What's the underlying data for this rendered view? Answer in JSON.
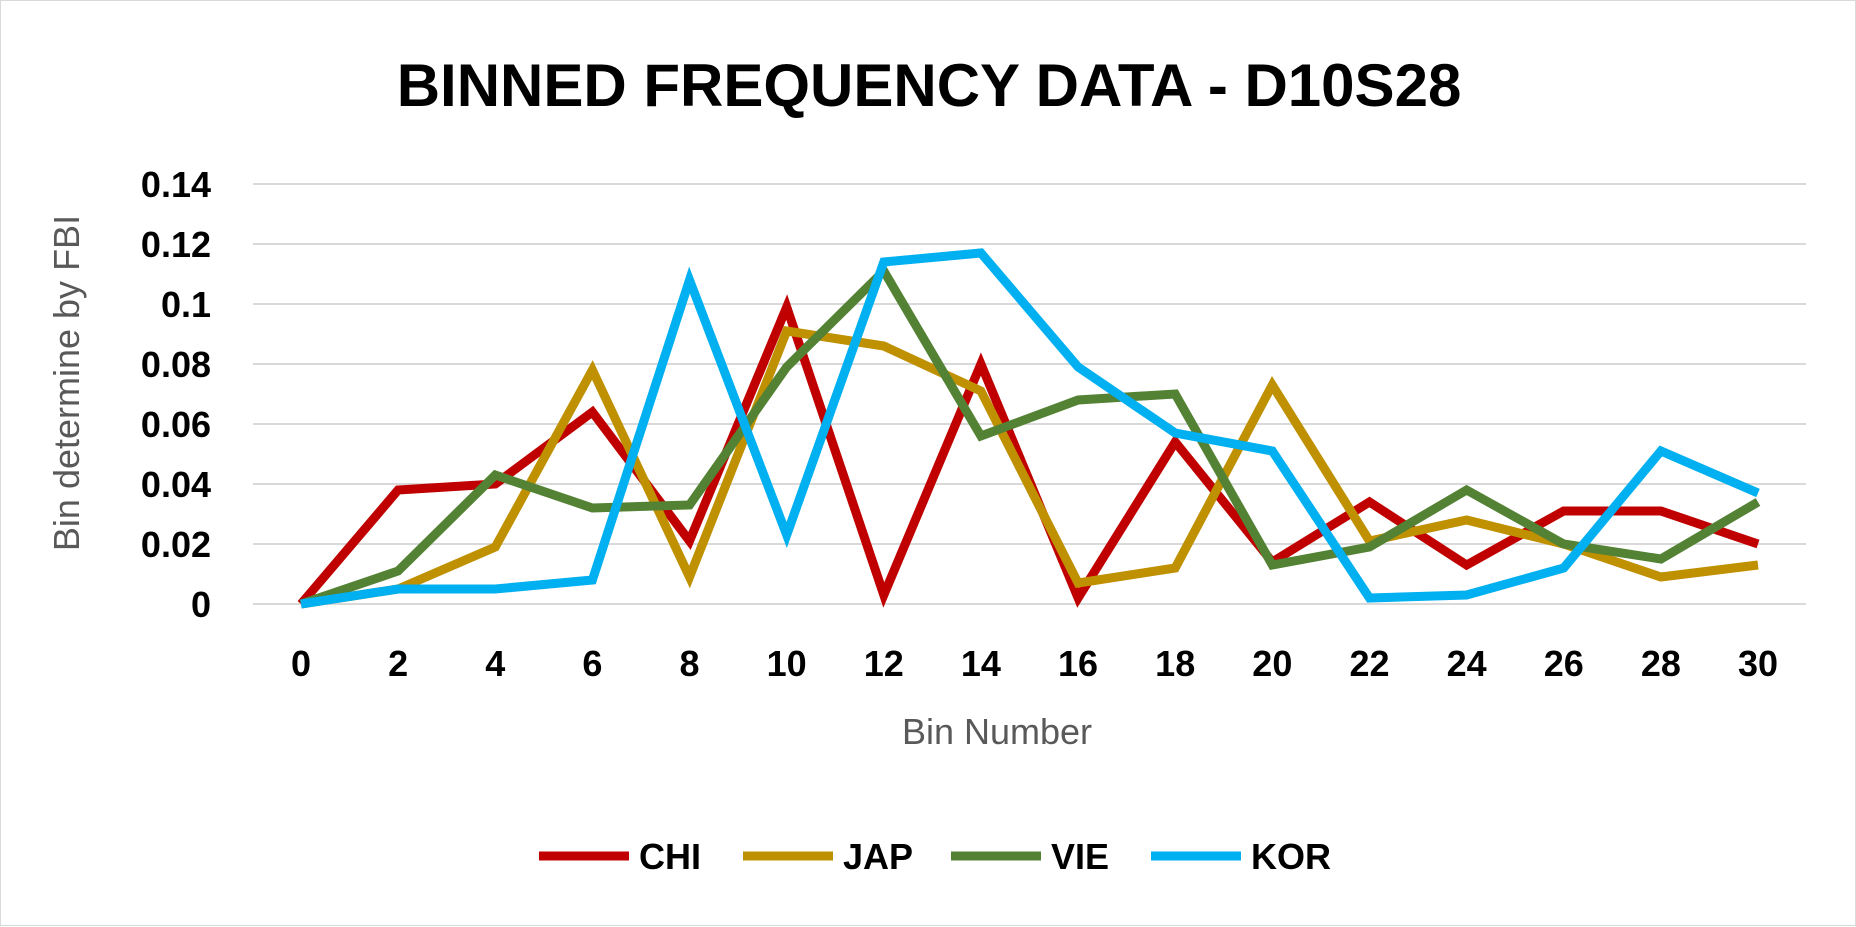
{
  "chart_data": {
    "type": "line",
    "title": "BINNED FREQUENCY DATA - D10S28",
    "xlabel": "Bin Number",
    "ylabel": "Bin determine by FBI",
    "x": [
      0,
      2,
      4,
      6,
      8,
      10,
      12,
      14,
      16,
      18,
      20,
      22,
      24,
      26,
      28,
      30
    ],
    "x_tick_labels": [
      "0",
      "2",
      "4",
      "6",
      "8",
      "10",
      "12",
      "14",
      "16",
      "18",
      "20",
      "22",
      "24",
      "26",
      "28",
      "30"
    ],
    "ylim": [
      0,
      0.14
    ],
    "y_ticks": [
      0,
      0.02,
      0.04,
      0.06,
      0.08,
      0.1,
      0.12,
      0.14
    ],
    "y_tick_labels": [
      "0",
      "0.02",
      "0.04",
      "0.06",
      "0.08",
      "0.1",
      "0.12",
      "0.14"
    ],
    "grid": true,
    "legend_position": "bottom",
    "series": [
      {
        "name": "CHI",
        "color": "#c00000",
        "values": [
          0,
          0.038,
          0.04,
          0.064,
          0.021,
          0.099,
          0.003,
          0.08,
          0.002,
          0.054,
          0.014,
          0.034,
          0.013,
          0.031,
          0.031,
          0.02
        ]
      },
      {
        "name": "JAP",
        "color": "#bf9000",
        "values": [
          0,
          0.005,
          0.019,
          0.078,
          0.009,
          0.091,
          0.086,
          0.071,
          0.007,
          0.012,
          0.073,
          0.021,
          0.028,
          0.02,
          0.009,
          0.013
        ]
      },
      {
        "name": "VIE",
        "color": "#548235",
        "values": [
          0,
          0.011,
          0.043,
          0.032,
          0.033,
          0.079,
          0.111,
          0.056,
          0.068,
          0.07,
          0.013,
          0.019,
          0.038,
          0.02,
          0.015,
          0.034
        ]
      },
      {
        "name": "KOR",
        "color": "#00b0f0",
        "values": [
          0,
          0.005,
          0.005,
          0.008,
          0.108,
          0.023,
          0.114,
          0.117,
          0.079,
          0.057,
          0.051,
          0.002,
          0.003,
          0.012,
          0.051,
          0.037
        ]
      }
    ]
  }
}
